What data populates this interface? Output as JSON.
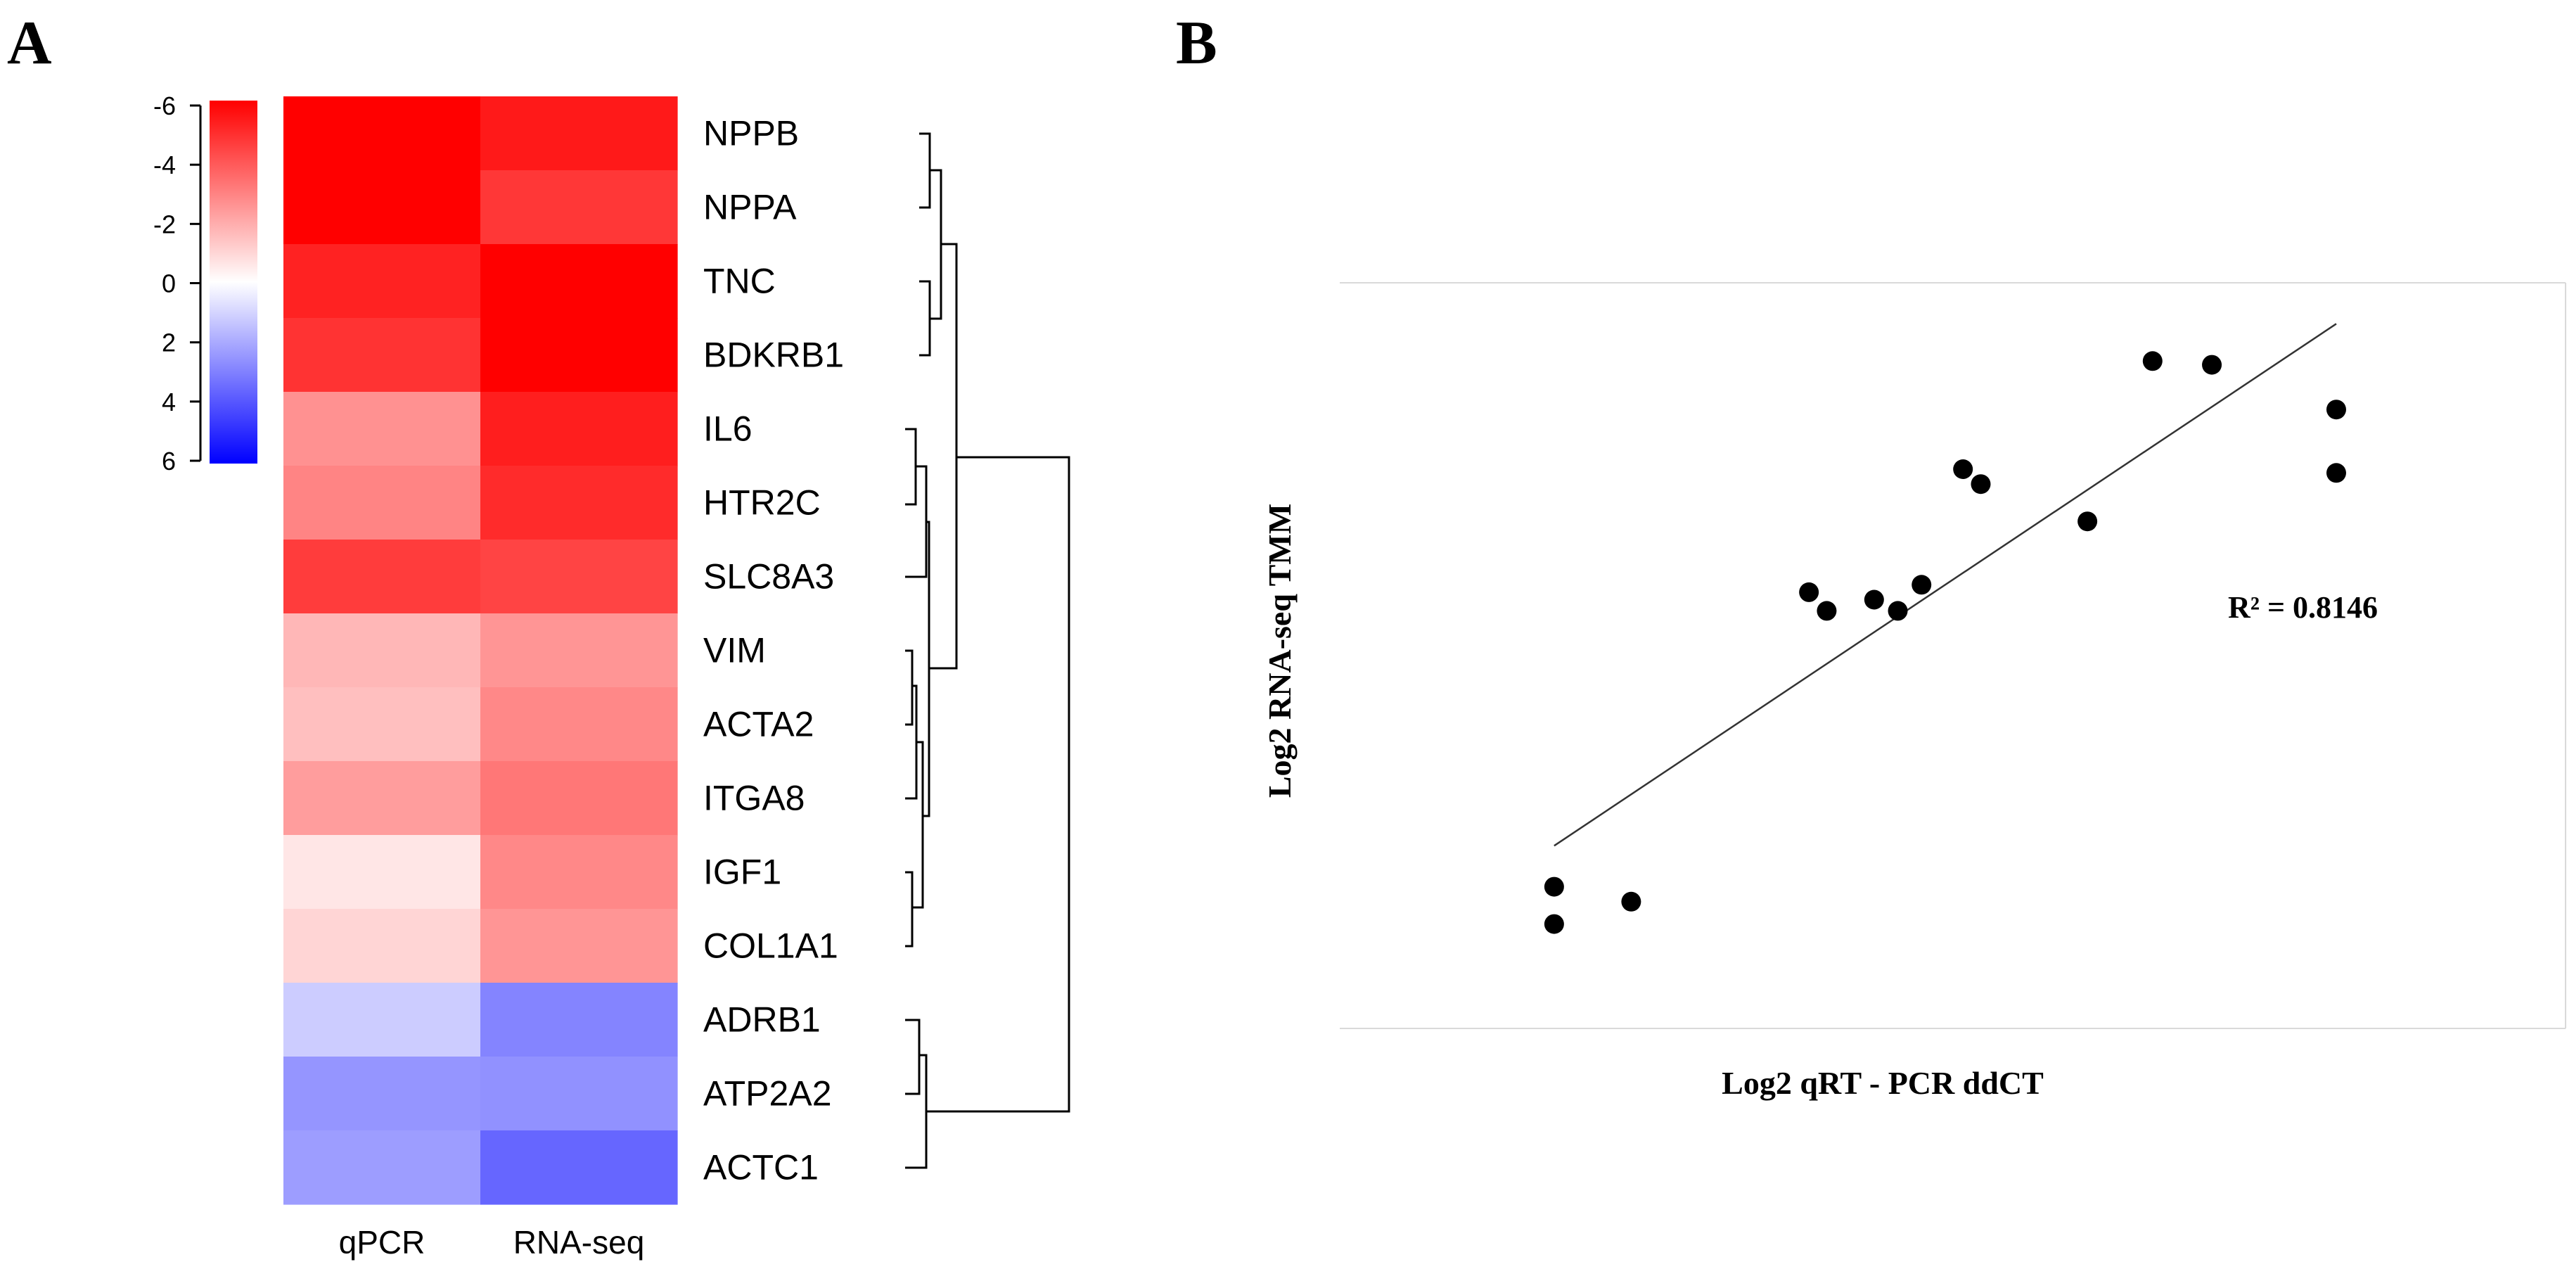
{
  "panel_labels": {
    "a": "A",
    "b": "B"
  },
  "chart_data": [
    {
      "type": "heatmap",
      "panel": "A",
      "columns": [
        "qPCR",
        "RNA-seq"
      ],
      "rows": [
        "NPPB",
        "NPPA",
        "TNC",
        "BDKRB1",
        "IL6",
        "HTR2C",
        "SLC8A3",
        "VIM",
        "ACTA2",
        "ITGA8",
        "IGF1",
        "COL1A1",
        "ADRB1",
        "ATP2A2",
        "ACTC1"
      ],
      "values": [
        [
          -6.0,
          -5.4
        ],
        [
          -6.0,
          -4.7
        ],
        [
          -5.2,
          -6.0
        ],
        [
          -4.8,
          -6.0
        ],
        [
          -2.6,
          -5.3
        ],
        [
          -2.9,
          -5.0
        ],
        [
          -4.6,
          -4.4
        ],
        [
          -1.7,
          -2.5
        ],
        [
          -1.5,
          -2.8
        ],
        [
          -2.3,
          -3.2
        ],
        [
          -0.6,
          -2.8
        ],
        [
          -1.0,
          -2.5
        ],
        [
          1.2,
          2.9
        ],
        [
          2.5,
          2.6
        ],
        [
          2.3,
          3.6
        ]
      ],
      "colorbar": {
        "ticks": [
          "-6",
          "-4",
          "-2",
          "0",
          "2",
          "4",
          "6"
        ],
        "min": -6,
        "max": 6,
        "colors": {
          "low": "#ff0000",
          "mid": "#ffffff",
          "high": "#0000ff"
        }
      },
      "dendrogram": true
    },
    {
      "type": "scatter",
      "panel": "B",
      "xlabel": "Log2 qRT - PCR ddCT",
      "ylabel": "Log2 RNA-seq TMM",
      "xlim": [
        0,
        10
      ],
      "ylim": [
        0,
        10
      ],
      "grid": false,
      "points": [
        {
          "x": 1.75,
          "y": 1.9
        },
        {
          "x": 1.75,
          "y": 1.4
        },
        {
          "x": 2.4,
          "y": 1.7
        },
        {
          "x": 3.9,
          "y": 5.85
        },
        {
          "x": 4.05,
          "y": 5.6
        },
        {
          "x": 4.45,
          "y": 5.75
        },
        {
          "x": 4.65,
          "y": 5.6
        },
        {
          "x": 4.85,
          "y": 5.95
        },
        {
          "x": 5.2,
          "y": 7.5
        },
        {
          "x": 5.35,
          "y": 7.3
        },
        {
          "x": 6.25,
          "y": 6.8
        },
        {
          "x": 6.8,
          "y": 8.95
        },
        {
          "x": 7.3,
          "y": 8.9
        },
        {
          "x": 8.35,
          "y": 8.3
        },
        {
          "x": 8.35,
          "y": 7.45
        }
      ],
      "trendline": {
        "x": [
          1.75,
          8.35
        ],
        "y": [
          2.45,
          9.45
        ]
      },
      "annotation": "R² = 0.8146"
    }
  ]
}
